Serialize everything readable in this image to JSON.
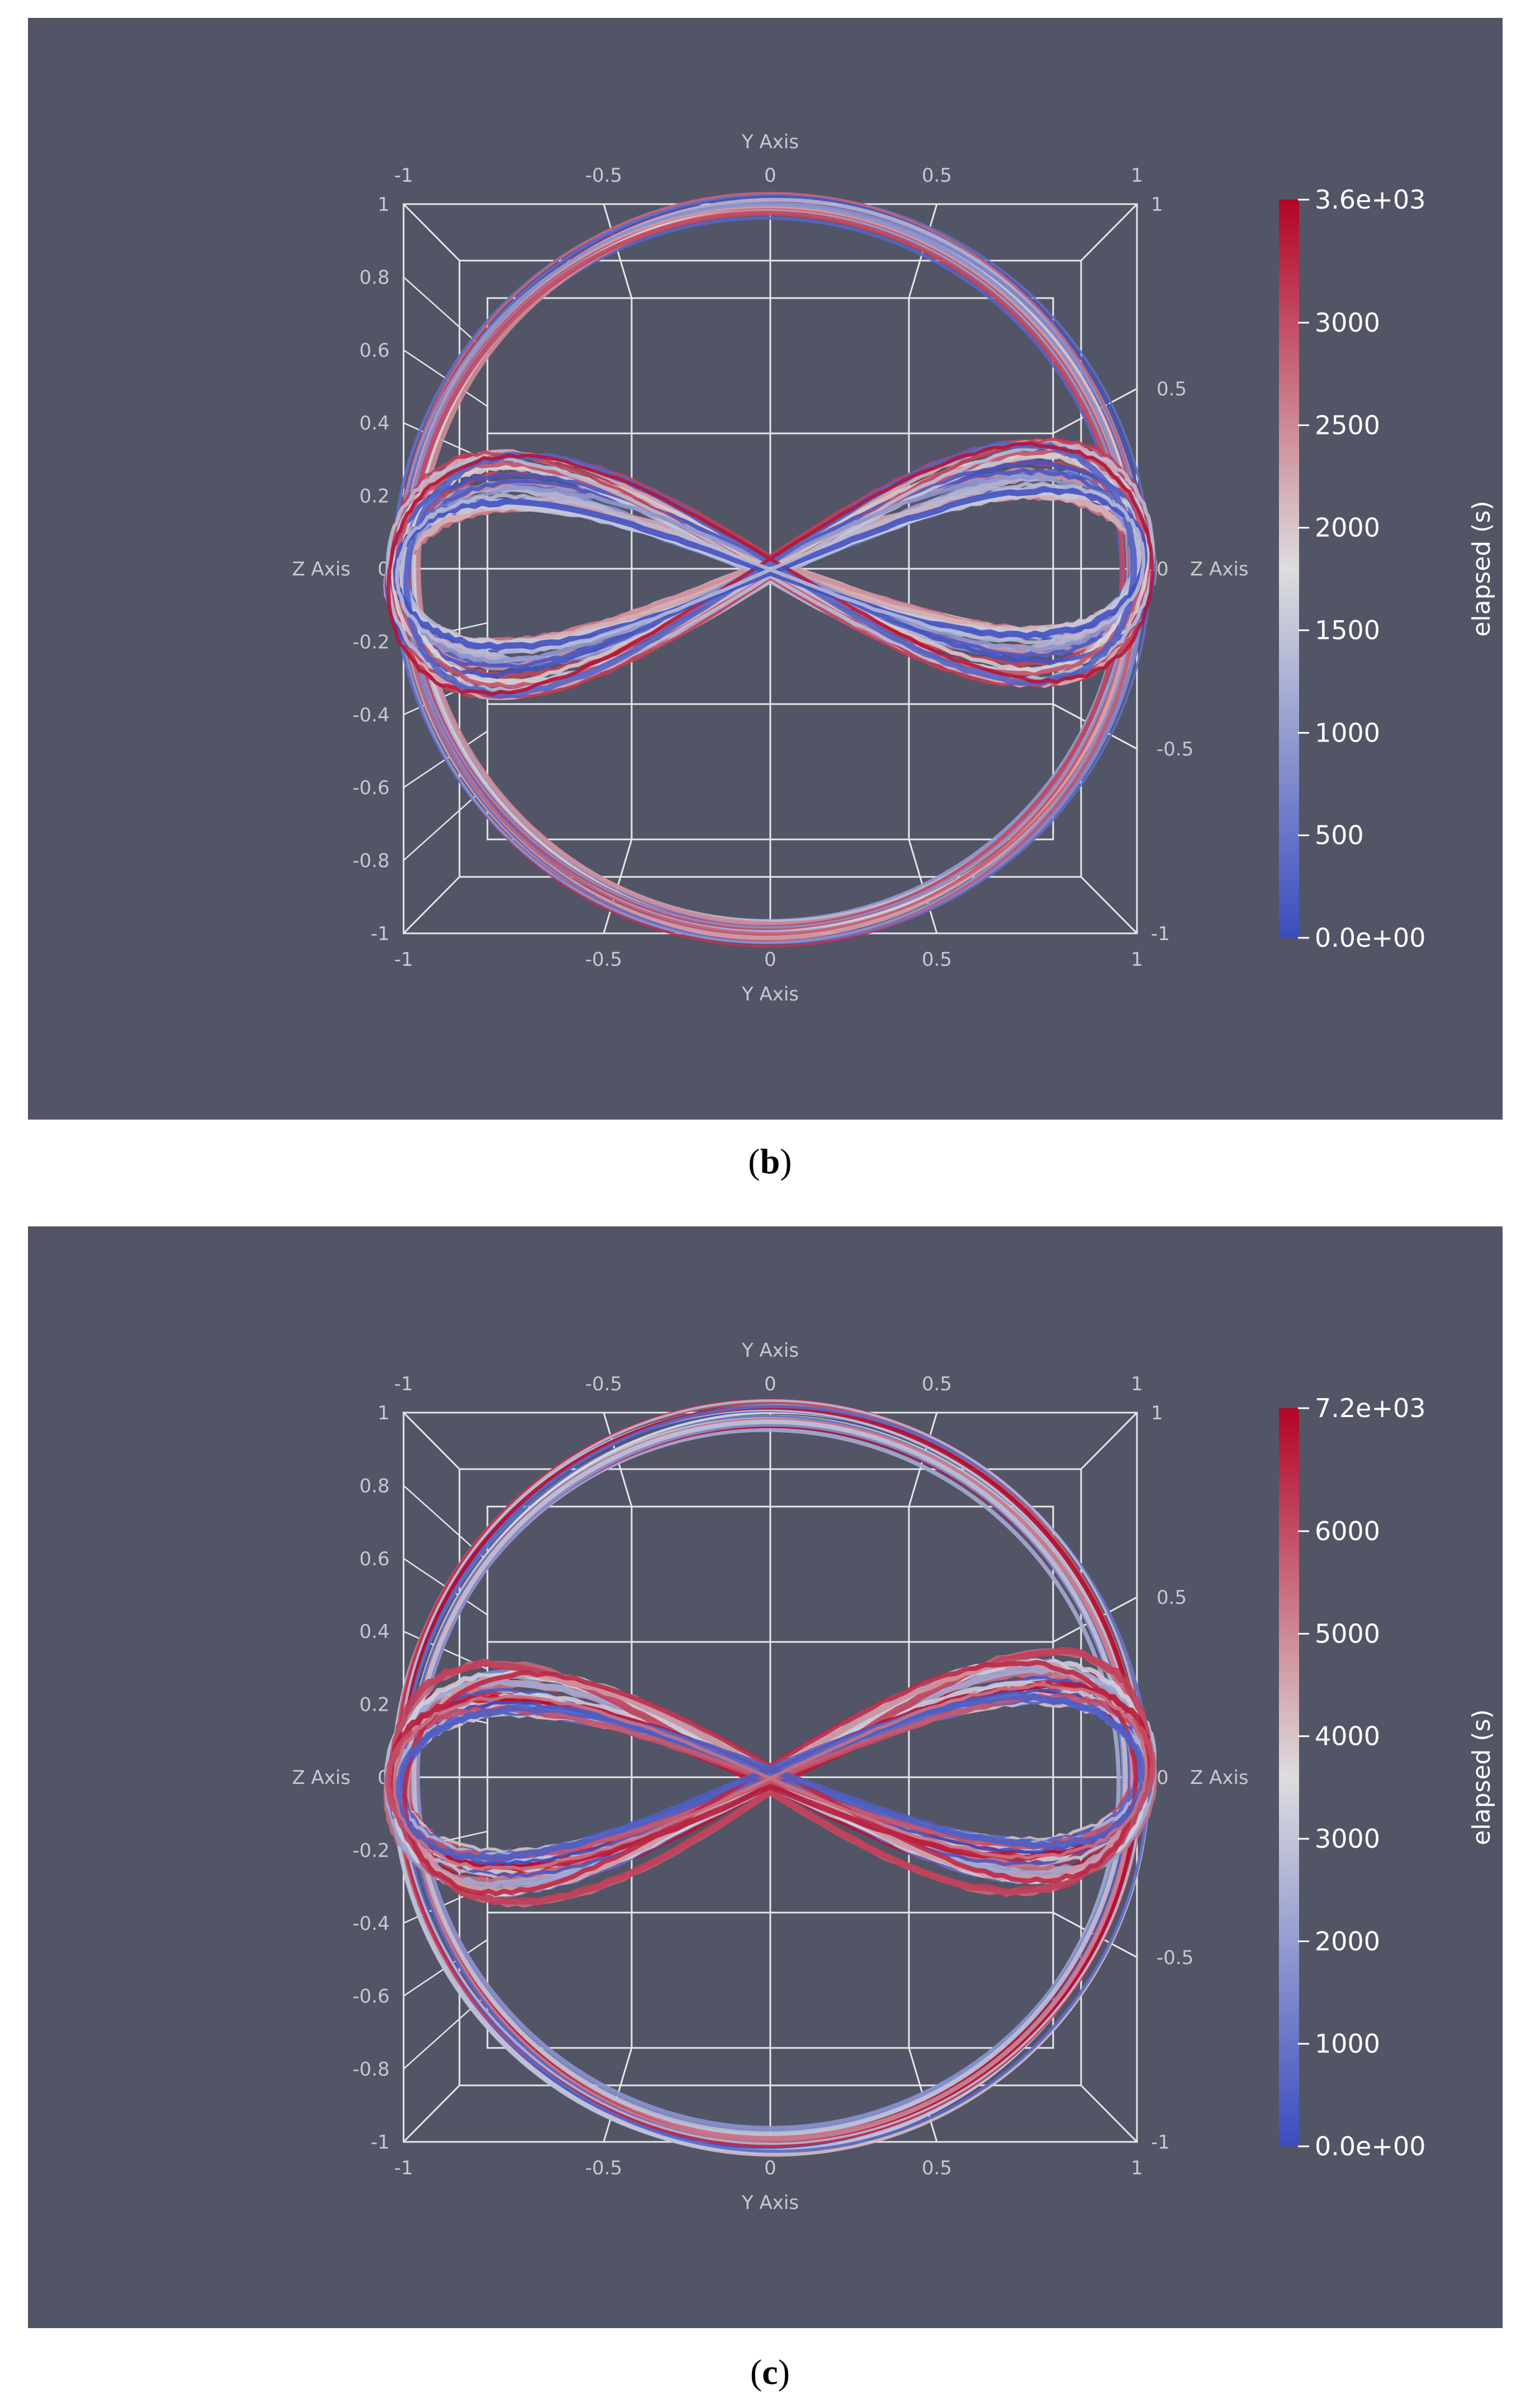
{
  "chart_data": [
    {
      "type": "3d-trajectory",
      "panel": "b",
      "background": "#525566",
      "axes": {
        "y_title": "Y Axis",
        "z_title": "Z Axis",
        "y_ticks": [
          "-1",
          "-0.5",
          "0",
          "0.5",
          "1"
        ],
        "z_ticks_left": [
          "1",
          "0.8",
          "0.6",
          "0.4",
          "0.2",
          "0",
          "-0.2",
          "-0.4",
          "-0.6",
          "-0.8",
          "-1"
        ],
        "z_ticks_right": [
          "0.5",
          "0",
          "-0.5",
          "1",
          "-1"
        ],
        "y_range": [
          -1,
          1
        ],
        "z_range": [
          -1,
          1
        ]
      },
      "colorbar": {
        "title": "elapsed (s)",
        "range": [
          0,
          3600
        ],
        "ticks": [
          "3.6e+03",
          "3000",
          "2500",
          "2000",
          "1500",
          "1000",
          "500",
          "0.0e+00"
        ],
        "tick_values": [
          3600,
          3000,
          2500,
          2000,
          1500,
          1000,
          500,
          0
        ],
        "colormap": [
          "#3b4cc0",
          "#dddddd",
          "#b40426"
        ]
      },
      "trajectory": {
        "shape": "figure-eight within circle",
        "loops_radius": 0.87
      }
    },
    {
      "type": "3d-trajectory",
      "panel": "c",
      "background": "#525566",
      "axes": {
        "y_title": "Y Axis",
        "z_title": "Z Axis",
        "y_ticks": [
          "-1",
          "-0.5",
          "0",
          "0.5",
          "1"
        ],
        "z_ticks_left": [
          "1",
          "0.8",
          "0.6",
          "0.4",
          "0.2",
          "0",
          "-0.2",
          "-0.4",
          "-0.6",
          "-0.8",
          "-1"
        ],
        "z_ticks_right": [
          "0.5",
          "0",
          "-0.5",
          "1",
          "-1"
        ],
        "y_range": [
          -1,
          1
        ],
        "z_range": [
          -1,
          1
        ]
      },
      "colorbar": {
        "title": "elapsed (s)",
        "range": [
          0,
          7200
        ],
        "ticks": [
          "7.2e+03",
          "6000",
          "5000",
          "4000",
          "3000",
          "2000",
          "1000",
          "0.0e+00"
        ],
        "tick_values": [
          7200,
          6000,
          5000,
          4000,
          3000,
          2000,
          1000,
          0
        ],
        "colormap": [
          "#3b4cc0",
          "#dddddd",
          "#b40426"
        ]
      },
      "trajectory": {
        "shape": "figure-eight within circle",
        "loops_radius": 0.87
      }
    }
  ],
  "captions": {
    "b": "b",
    "c": "c"
  }
}
